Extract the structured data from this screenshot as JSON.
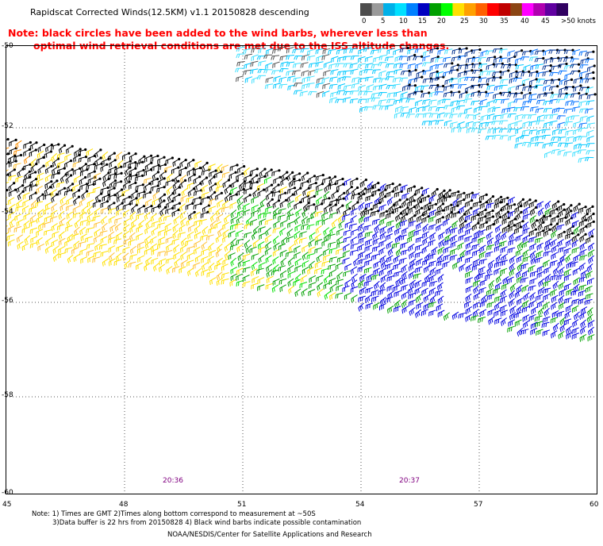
{
  "title": "Rapidscat Corrected Winds(12.5KM) v1.1 20150828 descending",
  "note": {
    "line1": "Note: black circles have been added to the wind barbs, wherever less than",
    "line2": "optimal wind retrieval conditions are met due to the ISS altitude changes."
  },
  "legend": {
    "colors": [
      "#4d4d4d",
      "#9a9a9a",
      "#00b0e8",
      "#00e0ff",
      "#0080ff",
      "#0000c0",
      "#00a000",
      "#00ff00",
      "#ffe000",
      "#ffa000",
      "#ff6000",
      "#ff0000",
      "#c00000",
      "#8b4513",
      "#ff00ff",
      "#b000b0",
      "#6000a0",
      "#300060"
    ],
    "labels": [
      "0",
      "5",
      "10",
      "15",
      "20",
      "25",
      "30",
      "35",
      "40",
      "45",
      ">50 knots"
    ]
  },
  "axes": {
    "lat_labels": [
      "-50",
      "-52",
      "-54",
      "-56",
      "-58",
      "-60"
    ],
    "lon_labels": [
      "45",
      "48",
      "51",
      "54",
      "57",
      "60"
    ]
  },
  "times": [
    "20:36",
    "20:37"
  ],
  "footer": {
    "line1": "Note: 1) Times are GMT 2)Times along bottom correspond to measurement at ~50S",
    "line2": "3)Data buffer is 22 hrs from 20150828 4) Black wind barbs indicate possible contamination",
    "line3": "NOAA/NESDIS/Center for Satellite Applications and Research"
  }
}
